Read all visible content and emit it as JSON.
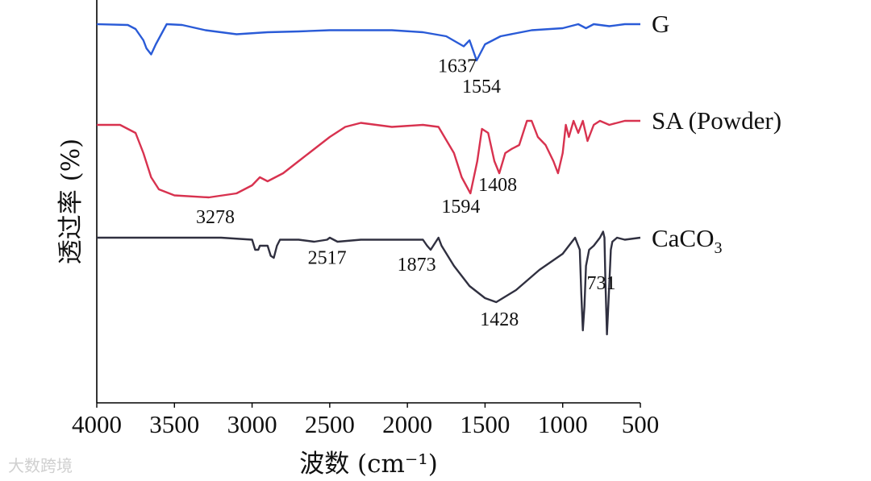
{
  "chart_data": {
    "type": "line",
    "title": "",
    "xlabel": "波数 (cm⁻¹)",
    "ylabel": "透过率 (%)",
    "xlim": [
      4000,
      500
    ],
    "x_reversed": true,
    "x_ticks": [
      4000,
      3500,
      3000,
      2500,
      2000,
      1500,
      1000,
      500
    ],
    "y_ticks_shown": false,
    "grid": false,
    "legend": "none",
    "series": [
      {
        "name": "G",
        "color": "#2a5bd7",
        "label_x": 500,
        "points": [
          [
            4000,
            6
          ],
          [
            3800,
            6.2
          ],
          [
            3750,
            7.2
          ],
          [
            3700,
            10
          ],
          [
            3680,
            12
          ],
          [
            3650,
            13.5
          ],
          [
            3620,
            11
          ],
          [
            3550,
            6
          ],
          [
            3450,
            6.2
          ],
          [
            3300,
            7.5
          ],
          [
            3100,
            8.5
          ],
          [
            2900,
            8
          ],
          [
            2700,
            7.8
          ],
          [
            2500,
            7.5
          ],
          [
            2300,
            7.5
          ],
          [
            2100,
            7.5
          ],
          [
            1900,
            8
          ],
          [
            1750,
            9
          ],
          [
            1637,
            11.5
          ],
          [
            1600,
            10
          ],
          [
            1554,
            15
          ],
          [
            1500,
            11
          ],
          [
            1400,
            9
          ],
          [
            1200,
            7.5
          ],
          [
            1000,
            7
          ],
          [
            900,
            6
          ],
          [
            850,
            7
          ],
          [
            800,
            6
          ],
          [
            700,
            6.5
          ],
          [
            600,
            6
          ],
          [
            500,
            6
          ]
        ],
        "peaks": [
          {
            "x": 1637,
            "label": "1637"
          },
          {
            "x": 1554,
            "label": "1554"
          }
        ]
      },
      {
        "name": "SA (Powder)",
        "color": "#d8324f",
        "label_x": 500,
        "points": [
          [
            4000,
            31
          ],
          [
            3850,
            31
          ],
          [
            3750,
            33
          ],
          [
            3700,
            38
          ],
          [
            3650,
            44
          ],
          [
            3600,
            47
          ],
          [
            3500,
            48.5
          ],
          [
            3278,
            49
          ],
          [
            3100,
            48
          ],
          [
            3000,
            46
          ],
          [
            2950,
            44
          ],
          [
            2900,
            45
          ],
          [
            2800,
            43
          ],
          [
            2700,
            40
          ],
          [
            2600,
            37
          ],
          [
            2500,
            34
          ],
          [
            2400,
            31.5
          ],
          [
            2300,
            30.5
          ],
          [
            2100,
            31.5
          ],
          [
            1900,
            31
          ],
          [
            1800,
            31.5
          ],
          [
            1700,
            38
          ],
          [
            1650,
            44
          ],
          [
            1594,
            48
          ],
          [
            1550,
            40
          ],
          [
            1520,
            32
          ],
          [
            1480,
            33
          ],
          [
            1440,
            40
          ],
          [
            1408,
            43
          ],
          [
            1370,
            38
          ],
          [
            1330,
            37
          ],
          [
            1280,
            36
          ],
          [
            1230,
            30
          ],
          [
            1200,
            30
          ],
          [
            1160,
            34
          ],
          [
            1110,
            36
          ],
          [
            1060,
            40
          ],
          [
            1030,
            43
          ],
          [
            1000,
            38
          ],
          [
            980,
            31
          ],
          [
            960,
            34
          ],
          [
            930,
            30
          ],
          [
            900,
            33
          ],
          [
            870,
            30
          ],
          [
            840,
            35
          ],
          [
            800,
            31
          ],
          [
            760,
            30
          ],
          [
            700,
            31
          ],
          [
            600,
            30
          ],
          [
            500,
            30
          ]
        ],
        "peaks": [
          {
            "x": 3278,
            "label": "3278"
          },
          {
            "x": 1594,
            "label": "1594"
          },
          {
            "x": 1408,
            "label": "1408"
          }
        ]
      },
      {
        "name": "CaCO₃",
        "name_base": "CaCO",
        "name_sub": "3",
        "color": "#303040",
        "label_x": 500,
        "points": [
          [
            4000,
            59
          ],
          [
            3600,
            59
          ],
          [
            3200,
            59
          ],
          [
            3000,
            59.5
          ],
          [
            2980,
            62
          ],
          [
            2960,
            62
          ],
          [
            2950,
            61
          ],
          [
            2900,
            61
          ],
          [
            2880,
            63.5
          ],
          [
            2860,
            64
          ],
          [
            2840,
            61
          ],
          [
            2820,
            59.5
          ],
          [
            2700,
            59.5
          ],
          [
            2600,
            60
          ],
          [
            2517,
            59.5
          ],
          [
            2500,
            59
          ],
          [
            2450,
            60
          ],
          [
            2300,
            59.5
          ],
          [
            2000,
            59.5
          ],
          [
            1900,
            59.5
          ],
          [
            1873,
            61
          ],
          [
            1850,
            62
          ],
          [
            1800,
            59
          ],
          [
            1780,
            61
          ],
          [
            1700,
            66
          ],
          [
            1600,
            71
          ],
          [
            1500,
            74
          ],
          [
            1428,
            75
          ],
          [
            1300,
            72
          ],
          [
            1150,
            67
          ],
          [
            1000,
            63
          ],
          [
            920,
            59
          ],
          [
            890,
            62
          ],
          [
            880,
            73
          ],
          [
            870,
            82
          ],
          [
            860,
            76
          ],
          [
            850,
            66
          ],
          [
            830,
            62
          ],
          [
            800,
            61
          ],
          [
            760,
            59
          ],
          [
            740,
            57.5
          ],
          [
            731,
            59
          ],
          [
            725,
            70
          ],
          [
            715,
            83
          ],
          [
            705,
            75
          ],
          [
            690,
            62
          ],
          [
            680,
            60
          ],
          [
            650,
            59
          ],
          [
            600,
            59.5
          ],
          [
            500,
            59
          ]
        ],
        "peaks": [
          {
            "x": 2517,
            "label": "2517"
          },
          {
            "x": 1873,
            "label": "1873"
          },
          {
            "x": 1428,
            "label": "1428"
          },
          {
            "x": 731,
            "label": "731"
          }
        ]
      }
    ]
  },
  "watermark": "大数跨境"
}
